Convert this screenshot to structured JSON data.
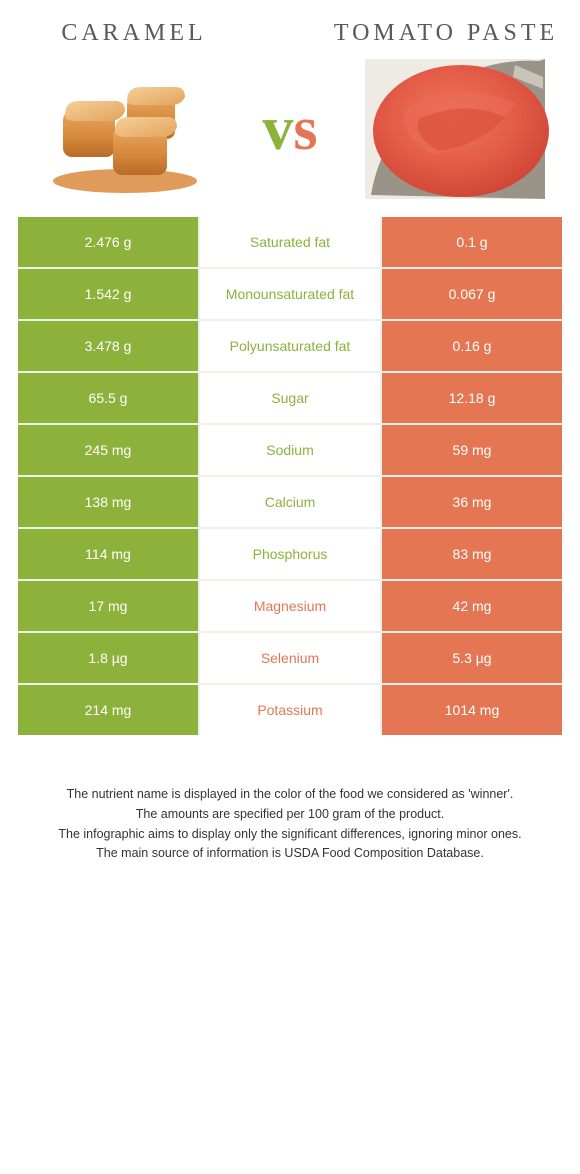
{
  "colors": {
    "left": "#8cb23c",
    "right": "#e47654",
    "winner_left_text": "#8cb23c",
    "winner_right_text": "#e47654",
    "title_text": "#5a5a5a"
  },
  "header": {
    "left_title": "Caramel",
    "right_title": "Tomato paste",
    "vs": "vs"
  },
  "rows": [
    {
      "label": "Saturated fat",
      "left": "2.476 g",
      "right": "0.1 g",
      "winner": "left"
    },
    {
      "label": "Monounsaturated fat",
      "left": "1.542 g",
      "right": "0.067 g",
      "winner": "left"
    },
    {
      "label": "Polyunsaturated fat",
      "left": "3.478 g",
      "right": "0.16 g",
      "winner": "left"
    },
    {
      "label": "Sugar",
      "left": "65.5 g",
      "right": "12.18 g",
      "winner": "left"
    },
    {
      "label": "Sodium",
      "left": "245 mg",
      "right": "59 mg",
      "winner": "left"
    },
    {
      "label": "Calcium",
      "left": "138 mg",
      "right": "36 mg",
      "winner": "left"
    },
    {
      "label": "Phosphorus",
      "left": "114 mg",
      "right": "83 mg",
      "winner": "left"
    },
    {
      "label": "Magnesium",
      "left": "17 mg",
      "right": "42 mg",
      "winner": "right"
    },
    {
      "label": "Selenium",
      "left": "1.8 µg",
      "right": "5.3 µg",
      "winner": "right"
    },
    {
      "label": "Potassium",
      "left": "214 mg",
      "right": "1014 mg",
      "winner": "right"
    }
  ],
  "footnotes": [
    "The nutrient name is displayed in the color of the food we considered as 'winner'.",
    "The amounts are specified per 100 gram of the product.",
    "The infographic aims to display only the significant differences, ignoring minor ones.",
    "The main source of information is USDA Food Composition Database."
  ]
}
